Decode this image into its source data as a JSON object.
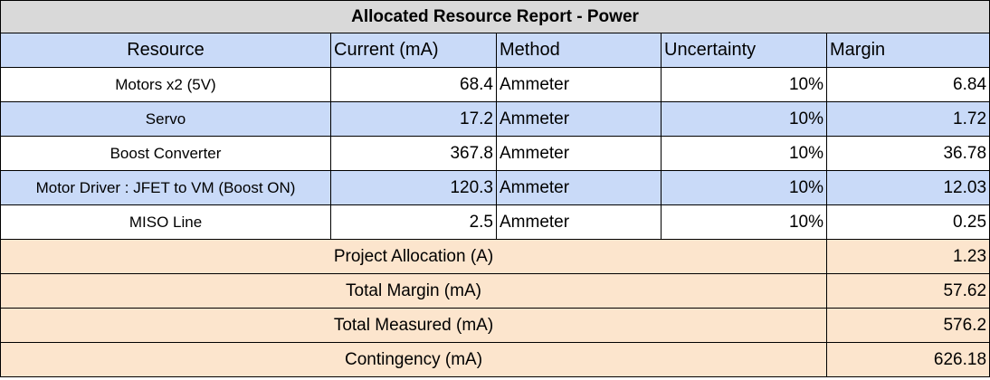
{
  "title": "Allocated Resource Report - Power",
  "headers": [
    "Resource",
    "Current (mA)",
    "Method",
    "Uncertainty",
    "Margin"
  ],
  "rows": [
    {
      "resource": "Motors x2 (5V)",
      "current": "68.4",
      "method": "Ammeter",
      "uncertainty": "10%",
      "margin": "6.84"
    },
    {
      "resource": "Servo",
      "current": "17.2",
      "method": "Ammeter",
      "uncertainty": "10%",
      "margin": "1.72"
    },
    {
      "resource": "Boost Converter",
      "current": "367.8",
      "method": "Ammeter",
      "uncertainty": "10%",
      "margin": "36.78"
    },
    {
      "resource": "Motor Driver : JFET to VM (Boost ON)",
      "current": "120.3",
      "method": "Ammeter",
      "uncertainty": "10%",
      "margin": "12.03"
    },
    {
      "resource": "MISO Line",
      "current": "2.5",
      "method": "Ammeter",
      "uncertainty": "10%",
      "margin": "0.25"
    }
  ],
  "summary": [
    {
      "label": "Project Allocation (A)",
      "value": "1.23"
    },
    {
      "label": "Total Margin (mA)",
      "value": "57.62"
    },
    {
      "label": "Total Measured (mA)",
      "value": "576.2"
    },
    {
      "label": "Contingency (mA)",
      "value": "626.18"
    }
  ],
  "colors": {
    "title_bg": "#d9d9d9",
    "header_bg": "#c9daf8",
    "alt_row_bg": "#c9daf8",
    "summary_bg": "#fce5cd",
    "border": "#000000"
  }
}
